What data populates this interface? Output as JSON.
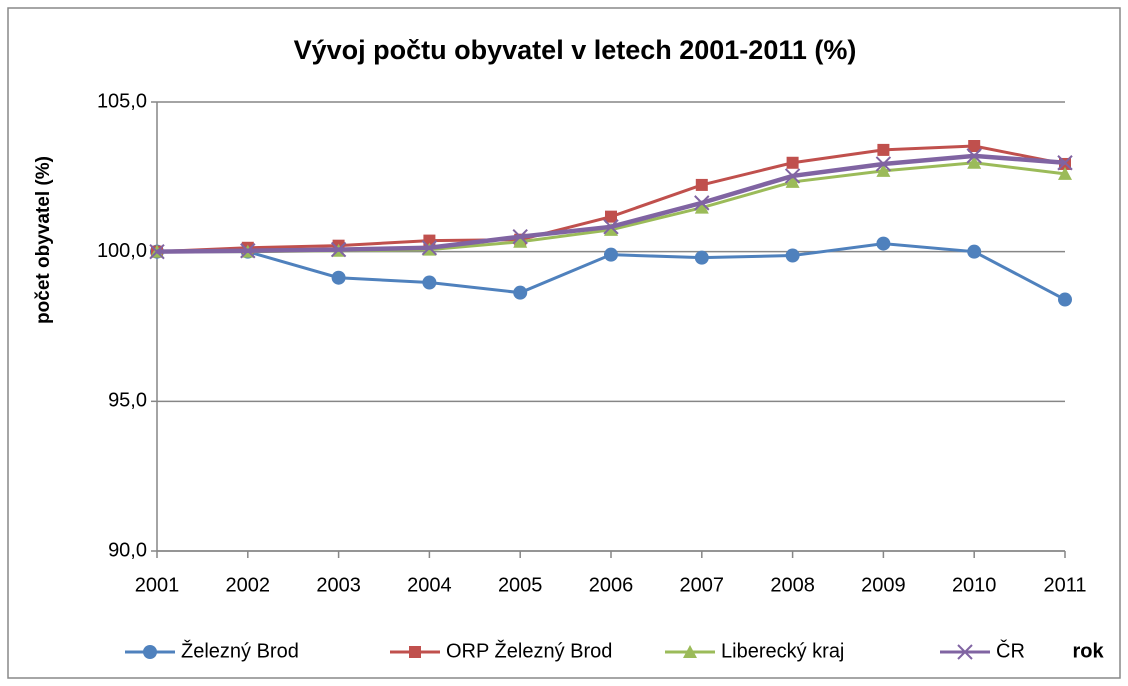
{
  "chart_data": {
    "type": "line",
    "title": "Vývoj počtu obyvatel v letech 2001-2011 (%)",
    "x_label": "rok",
    "y_label": "počet obyvatel (%)",
    "categories": [
      "2001",
      "2002",
      "2003",
      "2004",
      "2005",
      "2006",
      "2007",
      "2008",
      "2009",
      "2010",
      "2011"
    ],
    "ylim": [
      90,
      105
    ],
    "yticks": [
      {
        "value": 90,
        "label": "90,0"
      },
      {
        "value": 95,
        "label": "95,0"
      },
      {
        "value": 100,
        "label": "100,0"
      },
      {
        "value": 105,
        "label": "105,0"
      }
    ],
    "grid": true,
    "legend": "bottom",
    "series": [
      {
        "name": "Železný Brod",
        "color": "#4f81bd",
        "marker": "circle",
        "values": [
          100.0,
          100.0,
          99.13,
          98.97,
          98.63,
          99.9,
          99.8,
          99.87,
          100.27,
          100.0,
          98.4
        ]
      },
      {
        "name": "ORP Železný Brod",
        "color": "#c0504d",
        "marker": "square",
        "values": [
          100.0,
          100.13,
          100.2,
          100.37,
          100.4,
          101.17,
          102.23,
          102.97,
          103.4,
          103.53,
          102.93
        ]
      },
      {
        "name": "Liberecký kraj",
        "color": "#9bbb59",
        "marker": "triangle",
        "values": [
          100.0,
          100.0,
          100.03,
          100.07,
          100.33,
          100.73,
          101.47,
          102.33,
          102.7,
          102.97,
          102.6
        ]
      },
      {
        "name": "ČR",
        "color": "#8064a2",
        "marker": "x",
        "values": [
          100.0,
          100.03,
          100.07,
          100.13,
          100.5,
          100.83,
          101.63,
          102.53,
          102.93,
          103.2,
          102.97
        ]
      }
    ]
  }
}
